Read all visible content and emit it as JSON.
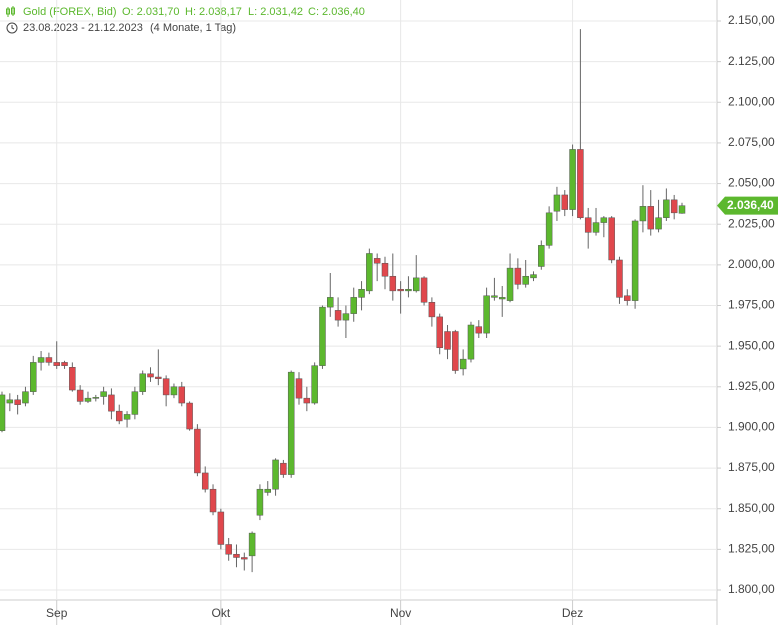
{
  "chart_data": {
    "type": "candlestick",
    "title": "Gold (FOREX, Bid)",
    "stats": [
      "O: 2.031,70",
      "H: 2.038,17",
      "L: 2.031,42",
      "C: 2.036,40"
    ],
    "range": "23.08.2023 - 21.12.2023",
    "duration": "(4 Monate, 1 Tag)",
    "up_color": "#5cb82e",
    "down_color": "#e0474c",
    "grid": true,
    "last": {
      "value": 2036.4,
      "label": "2.036,40"
    },
    "ylim": [
      1800,
      2150
    ],
    "yticks": [
      {
        "value": 1800,
        "label": "1.800,00"
      },
      {
        "value": 1825,
        "label": "1.825,00"
      },
      {
        "value": 1850,
        "label": "1.850,00"
      },
      {
        "value": 1875,
        "label": "1.875,00"
      },
      {
        "value": 1900,
        "label": "1.900,00"
      },
      {
        "value": 1925,
        "label": "1.925,00"
      },
      {
        "value": 1950,
        "label": "1.950,00"
      },
      {
        "value": 1975,
        "label": "1.975,00"
      },
      {
        "value": 2000,
        "label": "2.000,00"
      },
      {
        "value": 2025,
        "label": "2.025,00"
      },
      {
        "value": 2050,
        "label": "2.050,00"
      },
      {
        "value": 2075,
        "label": "2.075,00"
      },
      {
        "value": 2100,
        "label": "2.100,00"
      },
      {
        "value": 2125,
        "label": "2.125,00"
      },
      {
        "value": 2150,
        "label": "2.150,00"
      }
    ],
    "categories": [
      null,
      null,
      null,
      null,
      null,
      null,
      null,
      "Sep",
      null,
      null,
      null,
      null,
      null,
      null,
      null,
      null,
      null,
      null,
      null,
      null,
      null,
      null,
      null,
      null,
      null,
      null,
      null,
      null,
      "Okt",
      null,
      null,
      null,
      null,
      null,
      null,
      null,
      null,
      null,
      null,
      null,
      null,
      null,
      null,
      null,
      null,
      null,
      null,
      null,
      null,
      null,
      null,
      "Nov",
      null,
      null,
      null,
      null,
      null,
      null,
      null,
      null,
      null,
      null,
      null,
      null,
      null,
      null,
      null,
      null,
      null,
      null,
      null,
      null,
      null,
      "Dez",
      null,
      null,
      null,
      null,
      null,
      null,
      null,
      null,
      null,
      null,
      null,
      null,
      null,
      null
    ],
    "open": [
      1898,
      1915,
      1917,
      1915,
      1922,
      1940,
      1943,
      1940,
      1940,
      1937,
      1923,
      1916,
      1918,
      1919,
      1920,
      1910,
      1905,
      1908,
      1922,
      1933,
      1931,
      1930,
      1920,
      1925,
      1915,
      1899,
      1872,
      1862,
      1848,
      1828,
      1822,
      1820,
      1821,
      1846,
      1860,
      1862,
      1878,
      1871,
      1930,
      1918,
      1915,
      1938,
      1974,
      1972,
      1966,
      1970,
      1980,
      1984,
      2004,
      2001,
      1993,
      1985,
      1984,
      1984,
      1992,
      1977,
      1968,
      1959,
      1959,
      1936,
      1942,
      1962,
      1958,
      1980,
      1979,
      1978,
      1998,
      1988,
      1992,
      1999,
      2012,
      2033,
      2043,
      2034,
      2071,
      2029,
      2020,
      2026,
      2029,
      2003,
      1981,
      1978,
      2027,
      2036,
      2022,
      2029,
      2040,
      2031.7
    ],
    "high": [
      1922,
      1921,
      1920,
      1925,
      1944,
      1947,
      1946,
      1953,
      1941,
      1940,
      1926,
      1922,
      1920,
      1925,
      1924,
      1914,
      1910,
      1925,
      1935,
      1937,
      1948,
      1932,
      1927,
      1928,
      1916,
      1902,
      1876,
      1865,
      1850,
      1832,
      1828,
      1823,
      1836,
      1865,
      1867,
      1881,
      1880,
      1935,
      1934,
      1925,
      1940,
      1975,
      1995,
      1980,
      1975,
      1986,
      1990,
      2010,
      2007,
      2005,
      2007,
      1990,
      1993,
      2006,
      1993,
      1980,
      1970,
      1963,
      1960,
      1948,
      1965,
      1966,
      1986,
      1992,
      1987,
      2007,
      2004,
      2003,
      1996,
      2015,
      2036,
      2048,
      2046,
      2074,
      2145,
      2035,
      2035,
      2030,
      2030,
      2005,
      1985,
      2028,
      2049,
      2046,
      2040,
      2047,
      2043,
      2038.17
    ],
    "low": [
      1897,
      1910,
      1908,
      1913,
      1920,
      1935,
      1938,
      1936,
      1936,
      1922,
      1914,
      1915,
      1916,
      1914,
      1905,
      1902,
      1900,
      1905,
      1920,
      1928,
      1926,
      1913,
      1918,
      1913,
      1898,
      1870,
      1860,
      1846,
      1825,
      1818,
      1814,
      1812,
      1811,
      1843,
      1858,
      1858,
      1869,
      1869,
      1914,
      1910,
      1914,
      1936,
      1968,
      1962,
      1955,
      1965,
      1972,
      1982,
      1990,
      1985,
      1978,
      1970,
      1980,
      1983,
      1975,
      1962,
      1945,
      1942,
      1933,
      1932,
      1940,
      1955,
      1955,
      1978,
      1968,
      1977,
      1985,
      1986,
      1990,
      1997,
      2010,
      2027,
      2030,
      2030,
      2028,
      2010,
      2018,
      2017,
      2001,
      1976,
      1975,
      1973,
      2020,
      2018,
      2020,
      2027,
      2028,
      2031.42
    ],
    "close": [
      1920,
      1917,
      1914,
      1922,
      1940,
      1943,
      1940,
      1938,
      1938,
      1923,
      1916,
      1918,
      1918.5,
      1922,
      1910,
      1904,
      1908,
      1922,
      1933,
      1931,
      1930,
      1920,
      1925,
      1915,
      1899,
      1872,
      1862,
      1848,
      1828,
      1822,
      1820,
      1819,
      1835,
      1862,
      1862,
      1880,
      1871,
      1934,
      1918,
      1915,
      1938,
      1974,
      1980,
      1966,
      1970,
      1980,
      1985,
      2007,
      2001,
      1993,
      1984,
      1984,
      1985,
      1992,
      1977,
      1968,
      1949,
      1948,
      1935,
      1942,
      1963,
      1958,
      1981,
      1981,
      1980,
      1998,
      1988,
      1993,
      1994,
      2012,
      2032,
      2043,
      2034,
      2071,
      2029,
      2020,
      2026,
      2029,
      2003,
      1980,
      1978,
      2027,
      2036,
      2022,
      2029,
      2040,
      2032,
      2036.4
    ]
  }
}
